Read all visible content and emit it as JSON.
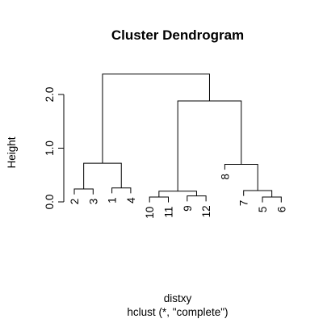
{
  "chart_data": {
    "type": "dendrogram",
    "title": "Cluster Dendrogram",
    "xlabel": "distxy",
    "sub": "hclust (*, \"complete\")",
    "ylabel": "Height",
    "ylim": [
      0,
      2.4
    ],
    "yticks": [
      {
        "value": 0.0,
        "label": "0.0"
      },
      {
        "value": 1.0,
        "label": "1.0"
      },
      {
        "value": 2.0,
        "label": "2.0"
      }
    ],
    "grid": false,
    "leaves": [
      "2",
      "3",
      "1",
      "4",
      "10",
      "11",
      "9",
      "12",
      "8",
      "7",
      "5",
      "6"
    ],
    "merges": [
      {
        "id": "m1",
        "left": "leaf:2",
        "right": "leaf:3",
        "height": 0.24
      },
      {
        "id": "m2",
        "left": "leaf:1",
        "right": "leaf:4",
        "height": 0.26
      },
      {
        "id": "m3",
        "left": "leaf:10",
        "right": "leaf:11",
        "height": 0.09
      },
      {
        "id": "m4",
        "left": "leaf:9",
        "right": "leaf:12",
        "height": 0.11
      },
      {
        "id": "m5",
        "left": "leaf:5",
        "right": "leaf:6",
        "height": 0.09
      },
      {
        "id": "m6",
        "left": "m3",
        "right": "m4",
        "height": 0.2
      },
      {
        "id": "m7",
        "left": "leaf:7",
        "right": "m5",
        "height": 0.21
      },
      {
        "id": "m8",
        "left": "m1",
        "right": "m2",
        "height": 0.72
      },
      {
        "id": "m9",
        "left": "leaf:8",
        "right": "m7",
        "height": 0.7
      },
      {
        "id": "m10",
        "left": "m6",
        "right": "m9",
        "height": 1.88
      },
      {
        "id": "m11",
        "left": "m8",
        "right": "m10",
        "height": 2.38
      }
    ],
    "leaf_hang": 0.1
  }
}
